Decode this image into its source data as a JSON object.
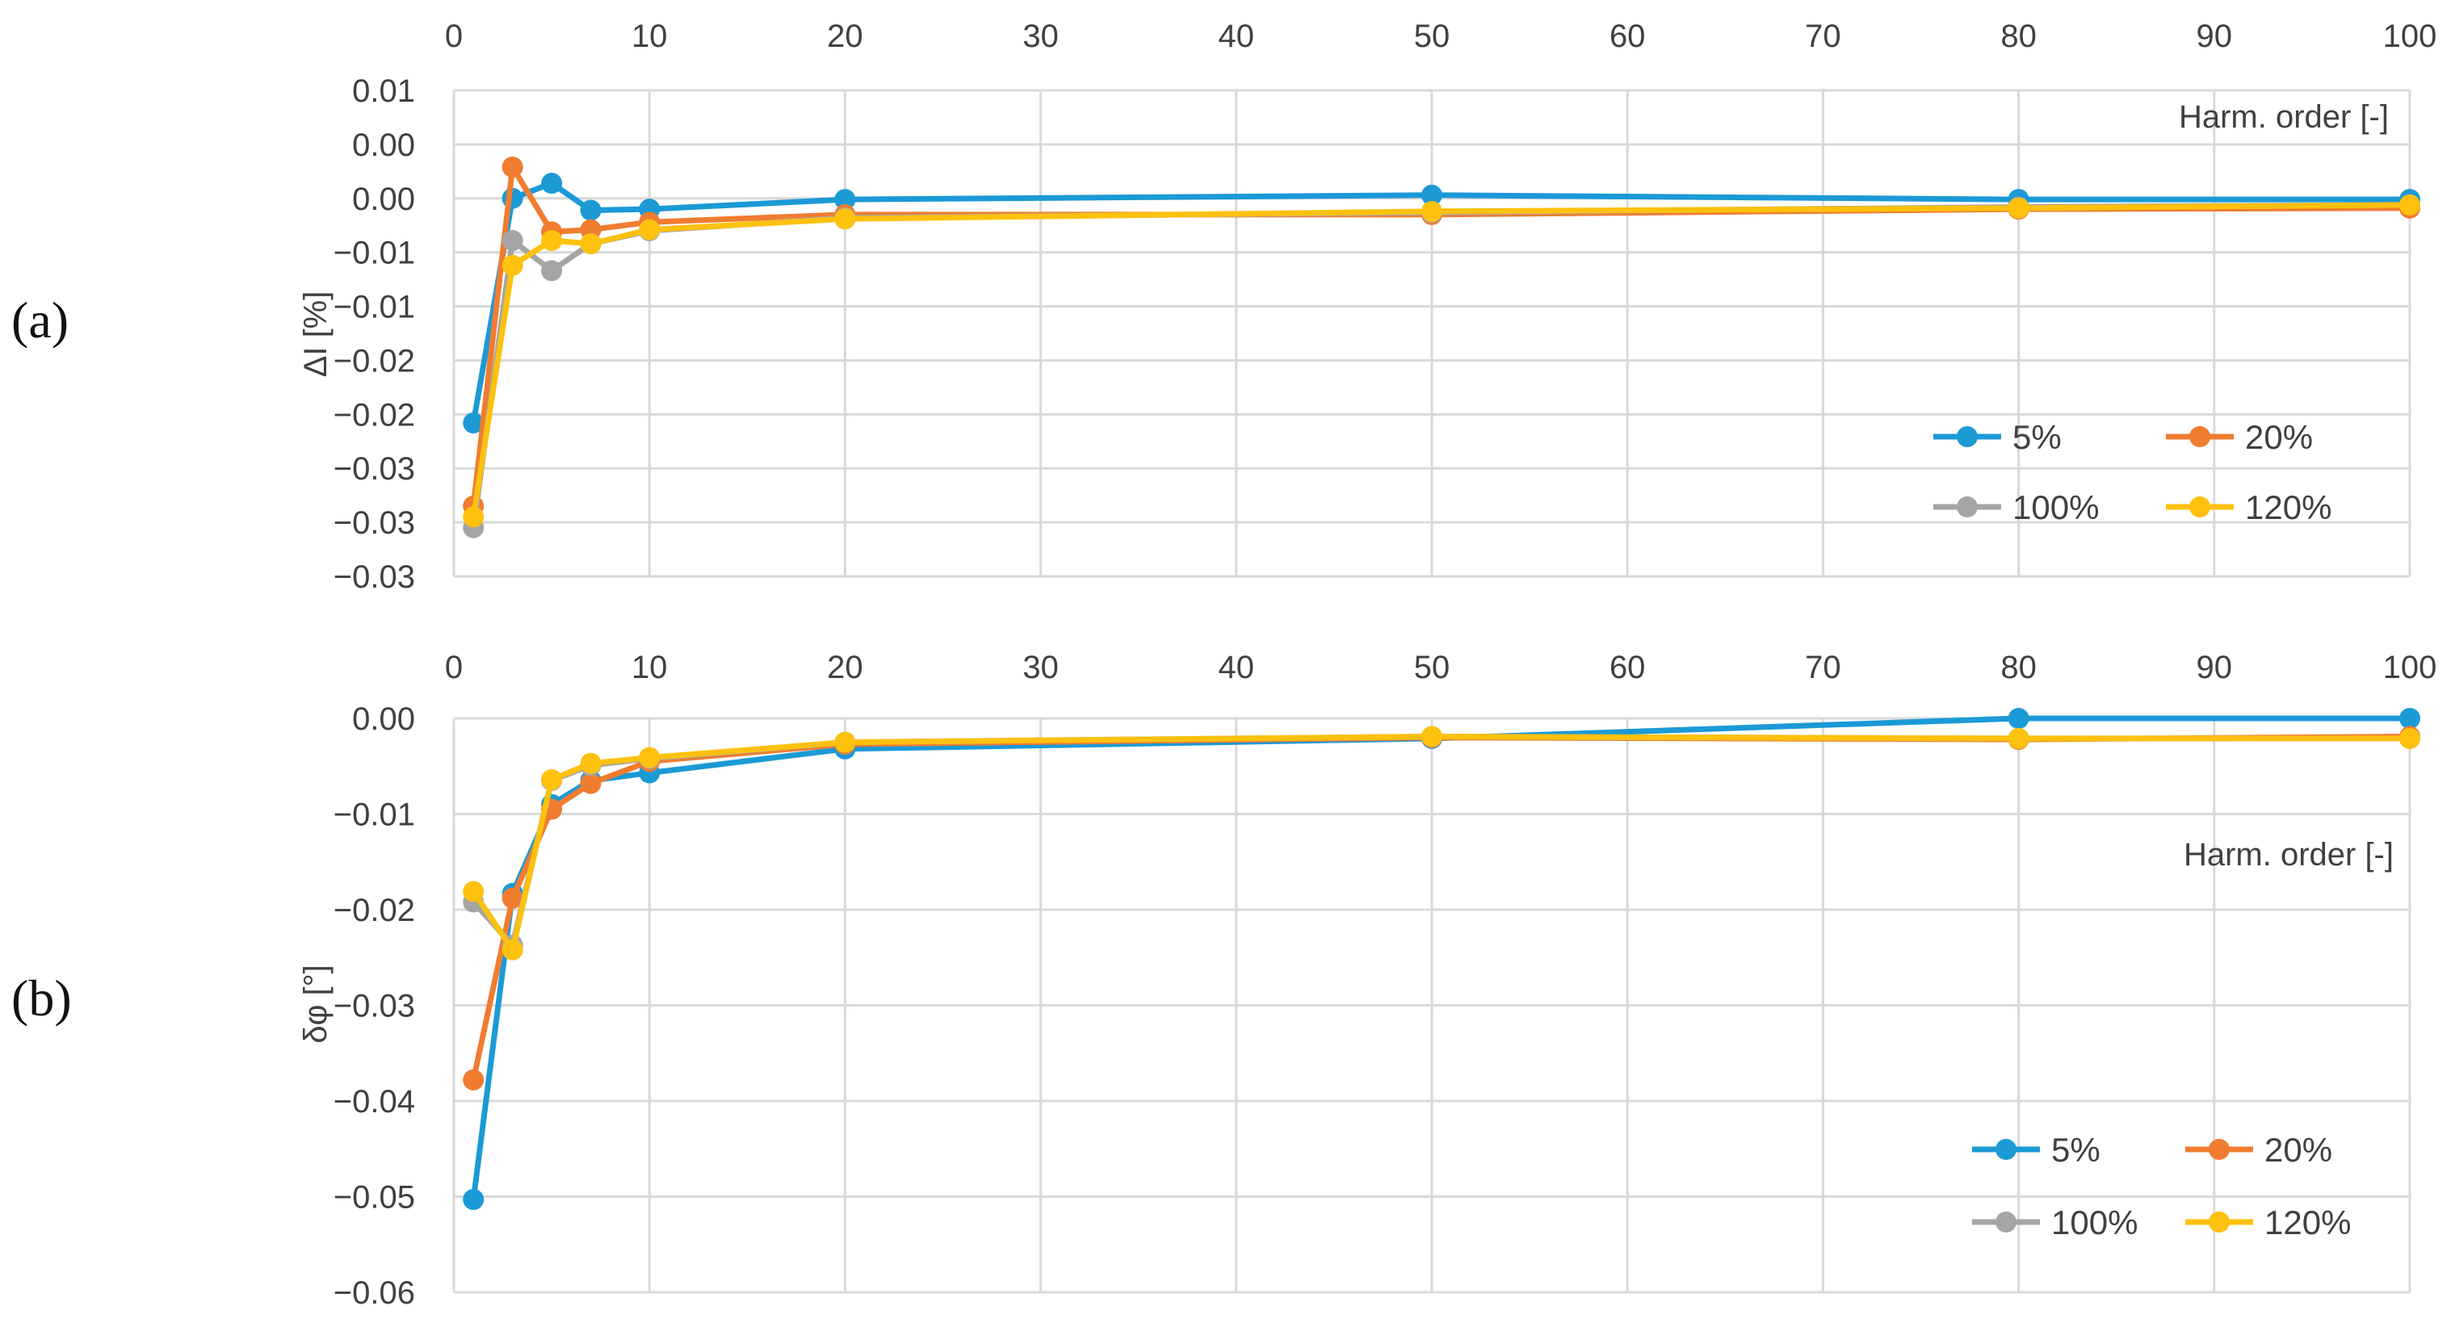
{
  "figure": {
    "panel_a_label": "(a)",
    "panel_b_label": "(b)"
  },
  "chart_data": [
    {
      "type": "line",
      "panel": "a",
      "ylabel": "ΔI [%]",
      "xlabel": "Harm. order [-]",
      "xlim": [
        0,
        100
      ],
      "ylim": [
        -0.035,
        0.01
      ],
      "xticks": [
        0,
        10,
        20,
        30,
        40,
        50,
        60,
        70,
        80,
        90,
        100
      ],
      "ytick_values": [
        0.01,
        0.005,
        0.0,
        -0.005,
        -0.01,
        -0.015,
        -0.02,
        -0.025,
        -0.03,
        -0.035
      ],
      "ytick_labels": [
        "0.01",
        "0.00",
        "0.00",
        "−0.01",
        "−0.01",
        "−0.02",
        "−0.02",
        "−0.03",
        "−0.03",
        "−0.03"
      ],
      "grid": true,
      "legend_position": "bottom-right",
      "x": [
        1,
        3,
        5,
        7,
        10,
        20,
        50,
        80,
        100
      ],
      "series": [
        {
          "name": "5%",
          "color": "#1b9ad6",
          "values": [
            -0.0208,
            0.0,
            0.0014,
            -0.0011,
            -0.001,
            -0.0001,
            0.0003,
            -0.0001,
            -0.0001
          ]
        },
        {
          "name": "20%",
          "color": "#f07c30",
          "values": [
            -0.0285,
            0.0029,
            -0.0031,
            -0.0029,
            -0.0022,
            -0.0015,
            -0.0015,
            -0.001,
            -0.0009
          ]
        },
        {
          "name": "100%",
          "color": "#a5a5a5",
          "values": [
            -0.0305,
            -0.0039,
            -0.0067,
            -0.0042,
            -0.003,
            -0.0018,
            -0.0013,
            -0.0008,
            -0.0006
          ]
        },
        {
          "name": "120%",
          "color": "#fdc10e",
          "values": [
            -0.0295,
            -0.0062,
            -0.0039,
            -0.0042,
            -0.0029,
            -0.0019,
            -0.0012,
            -0.0009,
            -0.0006
          ]
        }
      ]
    },
    {
      "type": "line",
      "panel": "b",
      "ylabel": "δφ [°]",
      "xlabel": "Harm. order [-]",
      "xlim": [
        0,
        100
      ],
      "ylim": [
        -0.06,
        0.0
      ],
      "xticks": [
        0,
        10,
        20,
        30,
        40,
        50,
        60,
        70,
        80,
        90,
        100
      ],
      "ytick_values": [
        0.0,
        -0.01,
        -0.02,
        -0.03,
        -0.04,
        -0.05,
        -0.06
      ],
      "ytick_labels": [
        "0.00",
        "−0.01",
        "−0.02",
        "−0.03",
        "−0.04",
        "−0.05",
        "−0.06"
      ],
      "grid": true,
      "legend_position": "bottom-right",
      "x": [
        1,
        3,
        5,
        7,
        10,
        20,
        50,
        80,
        100
      ],
      "series": [
        {
          "name": "5%",
          "color": "#1b9ad6",
          "values": [
            -0.0503,
            -0.0183,
            -0.009,
            -0.0065,
            -0.0057,
            -0.0032,
            -0.0021,
            0.0,
            0.0
          ]
        },
        {
          "name": "20%",
          "color": "#f07c30",
          "values": [
            -0.0378,
            -0.0188,
            -0.0095,
            -0.0068,
            -0.0045,
            -0.0027,
            -0.002,
            -0.0022,
            -0.0019
          ]
        },
        {
          "name": "100%",
          "color": "#a5a5a5",
          "values": [
            -0.0192,
            -0.0237,
            -0.0065,
            -0.0049,
            -0.0042,
            -0.0025,
            -0.0019,
            -0.0021,
            -0.0021
          ]
        },
        {
          "name": "120%",
          "color": "#fdc10e",
          "values": [
            -0.0181,
            -0.0242,
            -0.0064,
            -0.0047,
            -0.0041,
            -0.0025,
            -0.0019,
            -0.0021,
            -0.0021
          ]
        }
      ]
    }
  ]
}
